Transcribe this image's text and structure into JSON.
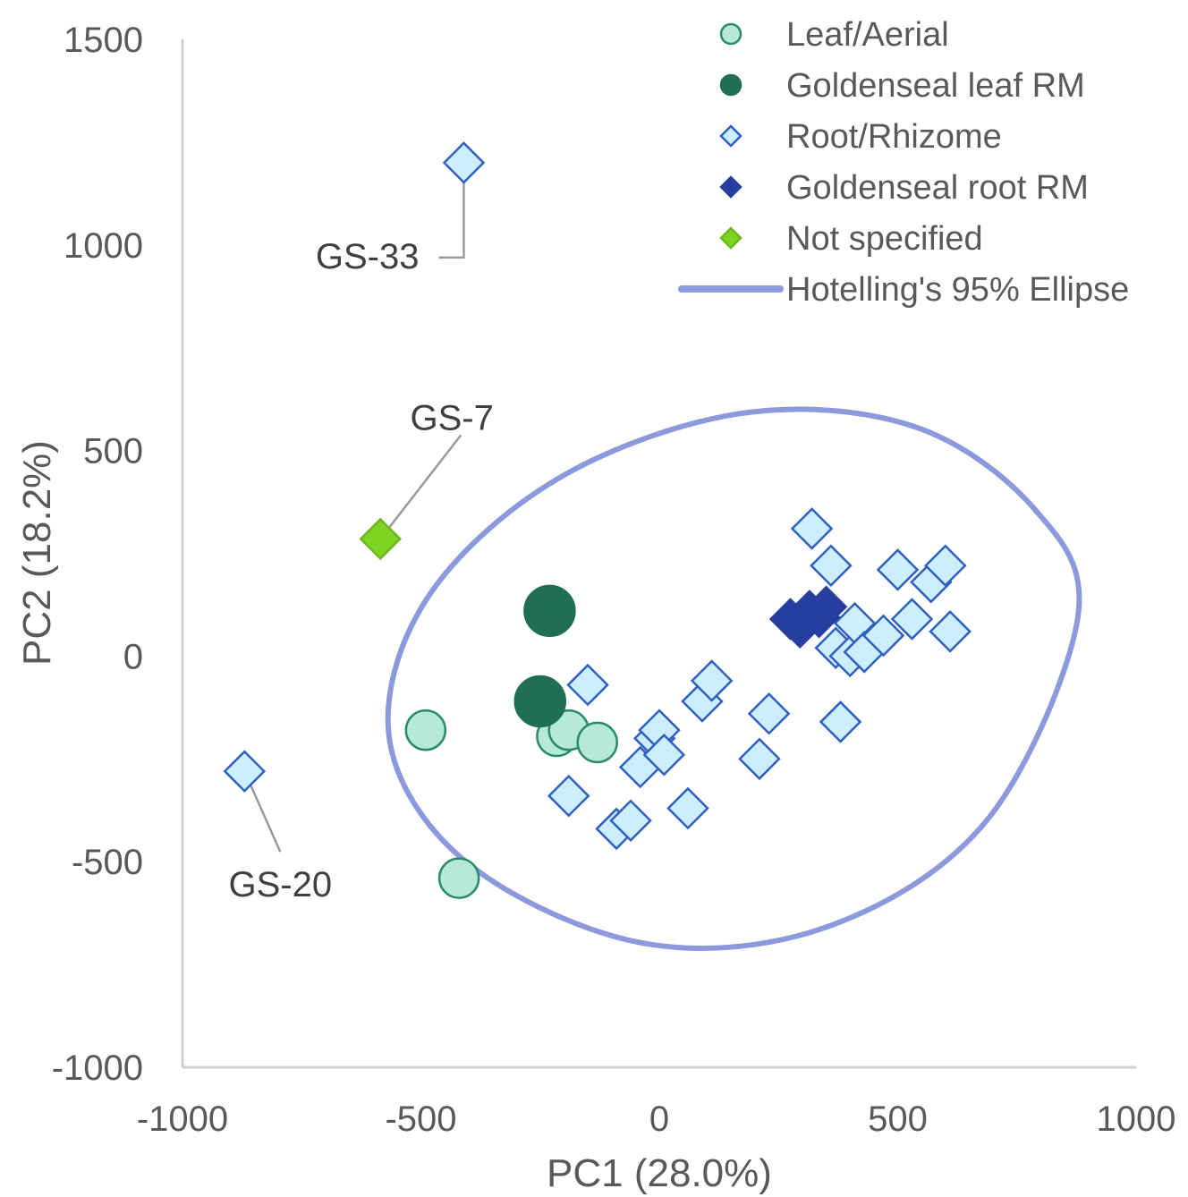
{
  "chart_data": {
    "type": "scatter",
    "xlabel": "PC1 (28.0%)",
    "ylabel": "PC2 (18.2%)",
    "xlim": [
      -1000,
      1000
    ],
    "ylim": [
      -1000,
      1500
    ],
    "x_ticks": [
      "-1000",
      "-500",
      "0",
      "500",
      "1000"
    ],
    "y_ticks": [
      "1500",
      "1000",
      "500",
      "0",
      "-500",
      "-1000"
    ],
    "grid": false,
    "legend_position": "top-right",
    "series": [
      {
        "name": "Leaf/Aerial",
        "marker": "circle",
        "color": "#b6ead7",
        "edge": "#2b8a6e",
        "points": [
          {
            "x": -490,
            "y": -180
          },
          {
            "x": -420,
            "y": -540
          },
          {
            "x": -215,
            "y": -195
          },
          {
            "x": -190,
            "y": -180
          },
          {
            "x": -130,
            "y": -210
          }
        ]
      },
      {
        "name": "Goldenseal leaf RM",
        "marker": "circle",
        "color": "#1f6e55",
        "edge": "#1f6e55",
        "points": [
          {
            "x": -230,
            "y": 110
          },
          {
            "x": -250,
            "y": -110
          }
        ]
      },
      {
        "name": "Root/Rhizome",
        "marker": "diamond",
        "color": "#cdeefc",
        "edge": "#2f5fc0",
        "points": [
          {
            "x": -410,
            "y": 1200
          },
          {
            "x": -870,
            "y": -280
          },
          {
            "x": -150,
            "y": -70
          },
          {
            "x": -190,
            "y": -340
          },
          {
            "x": -90,
            "y": -420
          },
          {
            "x": -60,
            "y": -400
          },
          {
            "x": -40,
            "y": -270
          },
          {
            "x": -10,
            "y": -200
          },
          {
            "x": 0,
            "y": -180
          },
          {
            "x": 10,
            "y": -240
          },
          {
            "x": 60,
            "y": -370
          },
          {
            "x": 90,
            "y": -110
          },
          {
            "x": 110,
            "y": -60
          },
          {
            "x": 210,
            "y": -250
          },
          {
            "x": 230,
            "y": -140
          },
          {
            "x": 320,
            "y": 310
          },
          {
            "x": 360,
            "y": 220
          },
          {
            "x": 370,
            "y": 20
          },
          {
            "x": 380,
            "y": -160
          },
          {
            "x": 400,
            "y": 0
          },
          {
            "x": 410,
            "y": 80
          },
          {
            "x": 430,
            "y": 10
          },
          {
            "x": 470,
            "y": 50
          },
          {
            "x": 500,
            "y": 210
          },
          {
            "x": 530,
            "y": 90
          },
          {
            "x": 570,
            "y": 180
          },
          {
            "x": 600,
            "y": 220
          },
          {
            "x": 610,
            "y": 60
          }
        ]
      },
      {
        "name": "Goldenseal root RM",
        "marker": "diamond",
        "color": "#263f9e",
        "edge": "#263f9e",
        "points": [
          {
            "x": 275,
            "y": 90
          },
          {
            "x": 295,
            "y": 70
          },
          {
            "x": 315,
            "y": 110
          },
          {
            "x": 335,
            "y": 95
          },
          {
            "x": 350,
            "y": 120
          }
        ]
      },
      {
        "name": "Not specified",
        "marker": "diamond",
        "color": "#7fd321",
        "edge": "#6cb81c",
        "points": [
          {
            "x": -585,
            "y": 285
          }
        ]
      }
    ],
    "ellipse": {
      "name": "Hotelling's 95% Ellipse",
      "color": "#8c99dc",
      "points": [
        {
          "x": 878,
          "y": 96
        },
        {
          "x": 785,
          "y": 360
        },
        {
          "x": 530,
          "y": 560
        },
        {
          "x": 170,
          "y": 590
        },
        {
          "x": -215,
          "y": 430
        },
        {
          "x": -490,
          "y": 135
        },
        {
          "x": -565,
          "y": -210
        },
        {
          "x": -395,
          "y": -510
        },
        {
          "x": -25,
          "y": -700
        },
        {
          "x": 360,
          "y": -655
        },
        {
          "x": 690,
          "y": -395
        }
      ]
    },
    "annotations": [
      {
        "text": "GS-33",
        "x": -410,
        "y": 1200
      },
      {
        "text": "GS-7",
        "x": -585,
        "y": 285
      },
      {
        "text": "GS-20",
        "x": -870,
        "y": -280
      }
    ]
  }
}
